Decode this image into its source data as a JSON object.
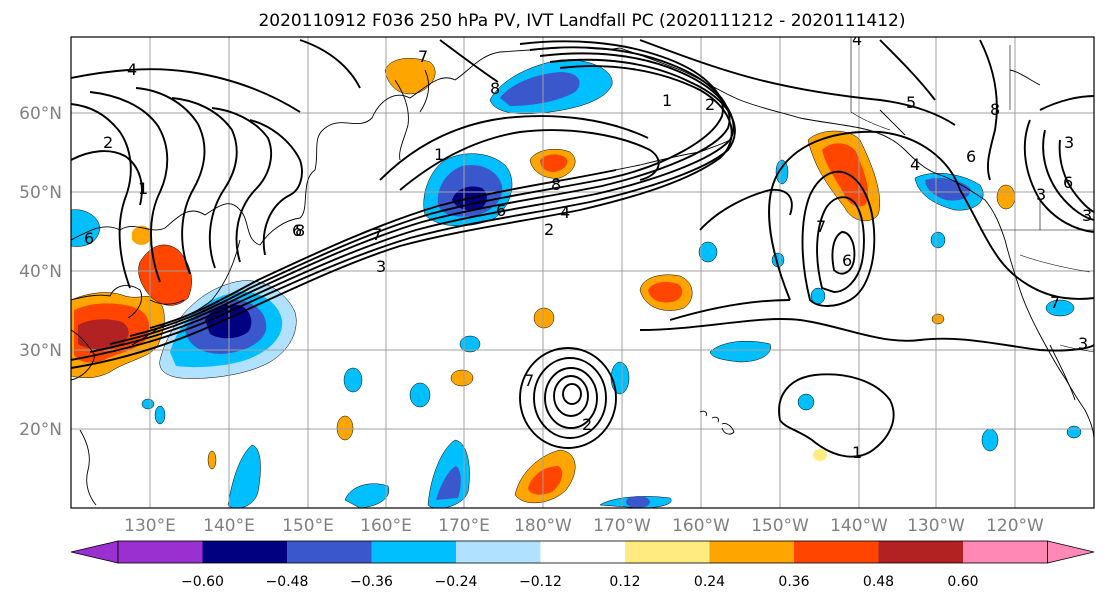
{
  "title": "2020110912 F036 250 hPa PV, IVT Landfall PC (2020111212 - 2020111412)",
  "lat_labels": [
    "60°N",
    "50°N",
    "40°N",
    "30°N",
    "20°N"
  ],
  "lon_labels": [
    "130°E",
    "140°E",
    "150°E",
    "160°E",
    "170°E",
    "180°W",
    "170°W",
    "160°W",
    "150°W",
    "140°W",
    "130°W",
    "120°W"
  ],
  "colorbar": {
    "ticks": [
      "−0.60",
      "−0.48",
      "−0.36",
      "−0.24",
      "−0.12",
      "0.12",
      "0.24",
      "0.36",
      "0.48",
      "0.60"
    ],
    "colors": [
      "#9b30d0",
      "#000080",
      "#3a58cc",
      "#00bfff",
      "#b0e2ff",
      "#ffffff",
      "#ffeb80",
      "#ffa500",
      "#ff4500",
      "#b22222",
      "#ff89b4"
    ]
  },
  "contour_labels": [
    "4",
    "7",
    "8",
    "2",
    "1",
    "6",
    "8",
    "6",
    "4",
    "2",
    "7",
    "3",
    "2",
    "1",
    "5",
    "8",
    "6",
    "3",
    "4",
    "6",
    "7",
    "1",
    "3",
    "7",
    "2",
    "6",
    "3",
    "8",
    "1",
    "4",
    "6",
    "7",
    "3"
  ]
}
